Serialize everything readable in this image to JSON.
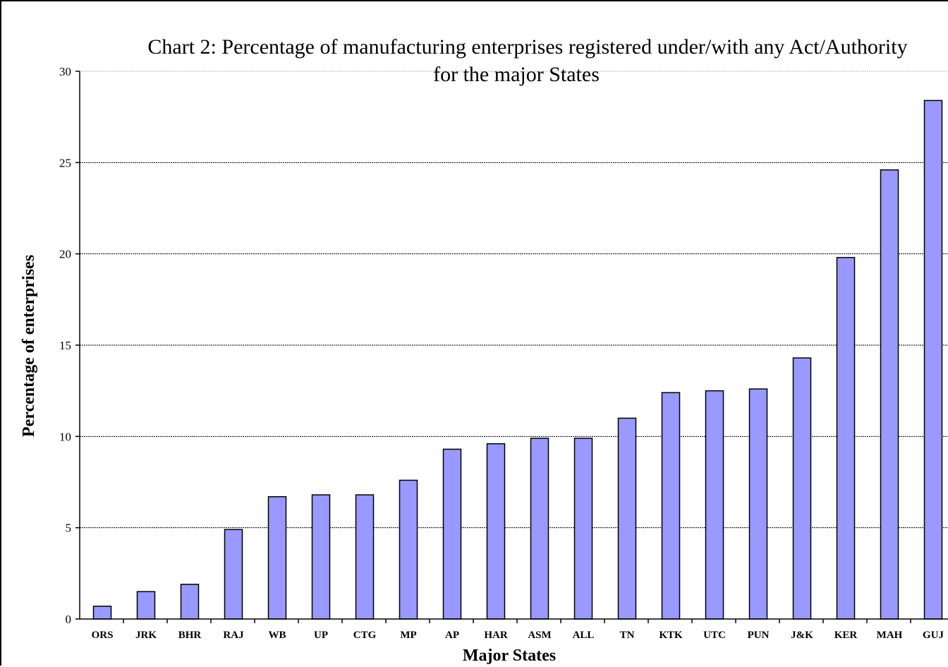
{
  "chart_data": {
    "type": "bar",
    "title_lines": [
      "Chart 2: Percentage of manufacturing enterprises registered under/with any Act/Authority",
      "for the major States"
    ],
    "xlabel": "Major States",
    "ylabel": "Percentage of enterprises",
    "ylim": [
      0,
      30
    ],
    "yticks": [
      "0",
      "5",
      "10",
      "15",
      "20",
      "25",
      "30"
    ],
    "grid": true,
    "legend": "none",
    "bar_color": "#9999ff",
    "categories": [
      "ORS",
      "JRK",
      "BHR",
      "RAJ",
      "WB",
      "UP",
      "CTG",
      "MP",
      "AP",
      "HAR",
      "ASM",
      "ALL",
      "TN",
      "KTK",
      "UTC",
      "PUN",
      "J&K",
      "KER",
      "MAH",
      "GUJ"
    ],
    "values": [
      0.7,
      1.5,
      1.9,
      4.9,
      6.7,
      6.8,
      6.8,
      7.6,
      9.3,
      9.6,
      9.9,
      9.9,
      11.0,
      12.4,
      12.5,
      12.6,
      14.3,
      19.8,
      24.6,
      28.4
    ]
  }
}
